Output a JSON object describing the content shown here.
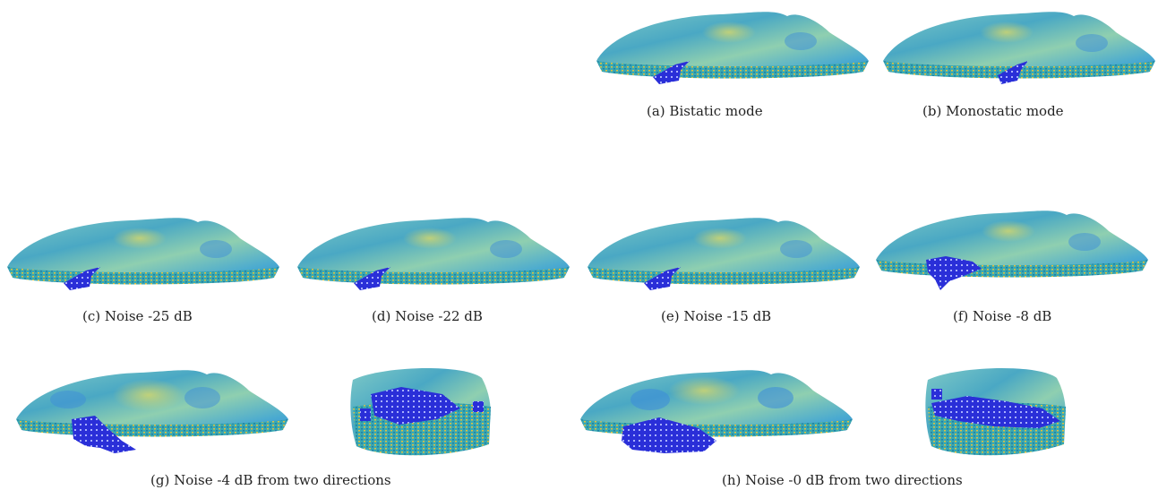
{
  "figure": {
    "panels": [
      {
        "id": "a",
        "caption": "(a)  Bistatic mode",
        "view": "side"
      },
      {
        "id": "b",
        "caption": "(b)  Monostatic mode",
        "view": "side"
      },
      {
        "id": "c",
        "caption": "(c)  Noise -25 dB",
        "view": "side"
      },
      {
        "id": "d",
        "caption": "(d)  Noise -22 dB",
        "view": "side"
      },
      {
        "id": "e",
        "caption": "(e)  Noise -15 dB",
        "view": "side"
      },
      {
        "id": "f",
        "caption": "(f)  Noise -8 dB",
        "view": "side"
      },
      {
        "id": "g",
        "caption": "(g)  Noise -4 dB from two directions",
        "view": "side+top"
      },
      {
        "id": "h",
        "caption": "(h)  Noise -0 dB from two directions",
        "view": "side+top"
      }
    ],
    "colors": {
      "surface_light": "#8fd0c2",
      "surface_mid": "#4fb0c0",
      "surface_blue": "#3d8ed8",
      "surface_yellow": "#cdd46a",
      "base_dots": "#c8b040",
      "inclusion": "#2a2fd8"
    }
  }
}
